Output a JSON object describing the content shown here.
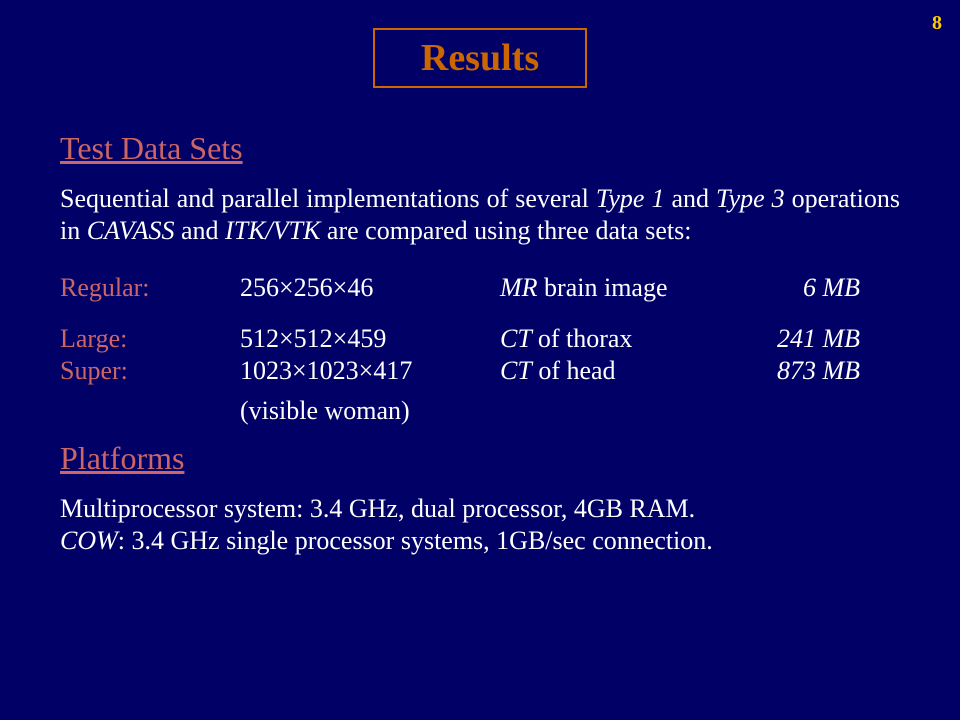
{
  "pageNumber": "8",
  "title": "Results",
  "heading1": "Test Data Sets",
  "intro_pre": "Sequential and parallel implementations of several ",
  "intro_type1": "Type 1",
  "intro_mid1": " and ",
  "intro_type3": "Type 3",
  "intro_mid2": " operations in ",
  "intro_cavass": "CAVASS",
  "intro_mid3": " and ",
  "intro_itkvtk": "ITK/VTK",
  "intro_post": " are compared using three data sets:",
  "rows": {
    "regular": {
      "label": "Regular:",
      "dims": "256×256×46",
      "desc_it": "MR",
      "desc_rm": " brain image",
      "size": "6 MB"
    },
    "large": {
      "label": "Large:",
      "dims": "512×512×459",
      "desc_it": "CT ",
      "desc_rm": " of thorax",
      "size": "241 MB"
    },
    "super": {
      "label": "Super:",
      "dims": "1023×1023×417",
      "desc_it": "CT",
      "desc_rm": " of  head",
      "size": "873 MB"
    }
  },
  "super_note": "(visible woman)",
  "heading2": "Platforms",
  "platform_line1": "Multiprocessor system: 3.4 GHz, dual processor, 4GB RAM.",
  "platform_cow": "COW",
  "platform_line2_rest": ": 3.4 GHz single processor systems, 1GB/sec connection."
}
